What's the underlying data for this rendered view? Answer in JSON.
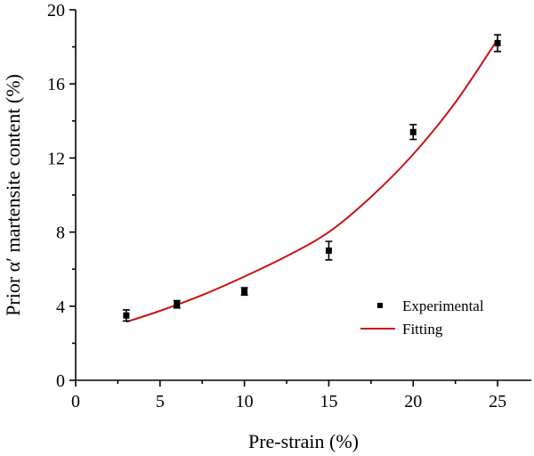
{
  "chart_data": {
    "type": "scatter",
    "title": "",
    "xlabel": "Pre-strain (%)",
    "ylabel": "Prior α′ martensite content (%)",
    "xlim": [
      0,
      27
    ],
    "ylim": [
      0,
      20
    ],
    "xticks": [
      0,
      5,
      10,
      15,
      20,
      25
    ],
    "yticks": [
      0,
      4,
      8,
      12,
      16,
      20
    ],
    "grid": false,
    "legend_position": "bottom-right",
    "series": [
      {
        "name": "Experimental",
        "kind": "points-with-error-bars",
        "color": "#000000",
        "x": [
          3,
          6,
          10,
          15,
          20,
          25
        ],
        "y": [
          3.5,
          4.1,
          4.8,
          7.0,
          13.4,
          18.2
        ],
        "yerr": [
          0.3,
          0.2,
          0.2,
          0.5,
          0.4,
          0.45
        ]
      },
      {
        "name": "Fitting",
        "kind": "line",
        "color": "#cc1111",
        "x": [
          3,
          5,
          7.5,
          10,
          12.5,
          15,
          17.5,
          20,
          22.5,
          25
        ],
        "y": [
          3.15,
          3.75,
          4.6,
          5.6,
          6.7,
          8.0,
          9.9,
          12.2,
          15.0,
          18.4
        ]
      }
    ]
  }
}
